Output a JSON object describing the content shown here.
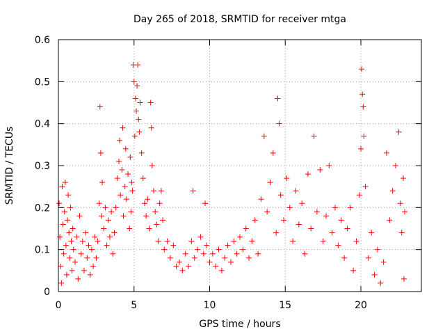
{
  "chart_data": {
    "type": "scatter",
    "title": "Day 265 of 2018, SRMTID for receiver mtga",
    "xlabel": "GPS time / hours",
    "ylabel": "SRMTID / TECUs",
    "xlim": [
      0,
      24
    ],
    "ylim": [
      0,
      0.6
    ],
    "xticks": [
      "0",
      "5",
      "10",
      "15",
      "20"
    ],
    "yticks": [
      "0",
      "0.1",
      "0.2",
      "0.3",
      "0.4",
      "0.5",
      "0.6"
    ],
    "grid": true,
    "marker": "+",
    "series": [
      {
        "name": "SRMTID",
        "color": "#ff0000",
        "points": [
          [
            0.05,
            0.21
          ],
          [
            0.1,
            0.13
          ],
          [
            0.15,
            0.06
          ],
          [
            0.2,
            0.02
          ],
          [
            0.25,
            0.25
          ],
          [
            0.3,
            0.16
          ],
          [
            0.35,
            0.09
          ],
          [
            0.4,
            0.19
          ],
          [
            0.45,
            0.26
          ],
          [
            0.5,
            0.11
          ],
          [
            0.55,
            0.04
          ],
          [
            0.6,
            0.17
          ],
          [
            0.65,
            0.23
          ],
          [
            0.7,
            0.14
          ],
          [
            0.75,
            0.08
          ],
          [
            0.8,
            0.2
          ],
          [
            0.85,
            0.12
          ],
          [
            0.9,
            0.05
          ],
          [
            0.95,
            0.15
          ],
          [
            1.0,
            0.1
          ],
          [
            1.1,
            0.07
          ],
          [
            1.2,
            0.13
          ],
          [
            1.3,
            0.03
          ],
          [
            1.4,
            0.18
          ],
          [
            1.5,
            0.09
          ],
          [
            1.6,
            0.12
          ],
          [
            1.7,
            0.05
          ],
          [
            1.8,
            0.14
          ],
          [
            1.9,
            0.08
          ],
          [
            2.0,
            0.11
          ],
          [
            2.1,
            0.04
          ],
          [
            2.2,
            0.1
          ],
          [
            2.3,
            0.06
          ],
          [
            2.4,
            0.13
          ],
          [
            2.5,
            0.08
          ],
          [
            2.6,
            0.12
          ],
          [
            2.7,
            0.21
          ],
          [
            2.75,
            0.44
          ],
          [
            2.8,
            0.33
          ],
          [
            2.85,
            0.18
          ],
          [
            2.9,
            0.26
          ],
          [
            3.0,
            0.15
          ],
          [
            3.1,
            0.2
          ],
          [
            3.2,
            0.11
          ],
          [
            3.3,
            0.17
          ],
          [
            3.4,
            0.13
          ],
          [
            3.5,
            0.19
          ],
          [
            3.6,
            0.09
          ],
          [
            3.7,
            0.14
          ],
          [
            3.8,
            0.2
          ],
          [
            3.9,
            0.27
          ],
          [
            4.0,
            0.31
          ],
          [
            4.05,
            0.36
          ],
          [
            4.1,
            0.23
          ],
          [
            4.2,
            0.29
          ],
          [
            4.25,
            0.39
          ],
          [
            4.3,
            0.18
          ],
          [
            4.4,
            0.25
          ],
          [
            4.45,
            0.34
          ],
          [
            4.5,
            0.22
          ],
          [
            4.6,
            0.28
          ],
          [
            4.7,
            0.15
          ],
          [
            4.75,
            0.32
          ],
          [
            4.8,
            0.19
          ],
          [
            4.85,
            0.26
          ],
          [
            4.9,
            0.24
          ],
          [
            4.95,
            0.54
          ],
          [
            5.0,
            0.5
          ],
          [
            5.05,
            0.37
          ],
          [
            5.1,
            0.46
          ],
          [
            5.15,
            0.43
          ],
          [
            5.2,
            0.49
          ],
          [
            5.25,
            0.54
          ],
          [
            5.3,
            0.41
          ],
          [
            5.35,
            0.38
          ],
          [
            5.4,
            0.45
          ],
          [
            5.5,
            0.33
          ],
          [
            5.6,
            0.27
          ],
          [
            5.7,
            0.21
          ],
          [
            5.8,
            0.18
          ],
          [
            5.9,
            0.22
          ],
          [
            6.0,
            0.15
          ],
          [
            6.1,
            0.45
          ],
          [
            6.15,
            0.39
          ],
          [
            6.2,
            0.3
          ],
          [
            6.3,
            0.24
          ],
          [
            6.4,
            0.19
          ],
          [
            6.5,
            0.16
          ],
          [
            6.6,
            0.12
          ],
          [
            6.7,
            0.21
          ],
          [
            6.8,
            0.24
          ],
          [
            6.9,
            0.17
          ],
          [
            7.0,
            0.1
          ],
          [
            7.2,
            0.12
          ],
          [
            7.4,
            0.08
          ],
          [
            7.6,
            0.11
          ],
          [
            7.8,
            0.06
          ],
          [
            8.0,
            0.07
          ],
          [
            8.2,
            0.05
          ],
          [
            8.4,
            0.09
          ],
          [
            8.6,
            0.06
          ],
          [
            8.8,
            0.12
          ],
          [
            8.9,
            0.24
          ],
          [
            9.0,
            0.08
          ],
          [
            9.2,
            0.1
          ],
          [
            9.4,
            0.13
          ],
          [
            9.6,
            0.09
          ],
          [
            9.7,
            0.21
          ],
          [
            9.8,
            0.11
          ],
          [
            10.0,
            0.07
          ],
          [
            10.2,
            0.09
          ],
          [
            10.4,
            0.06
          ],
          [
            10.6,
            0.1
          ],
          [
            10.8,
            0.05
          ],
          [
            11.0,
            0.08
          ],
          [
            11.2,
            0.11
          ],
          [
            11.4,
            0.07
          ],
          [
            11.6,
            0.12
          ],
          [
            11.8,
            0.09
          ],
          [
            12.0,
            0.13
          ],
          [
            12.2,
            0.1
          ],
          [
            12.4,
            0.15
          ],
          [
            12.6,
            0.08
          ],
          [
            12.8,
            0.12
          ],
          [
            13.0,
            0.17
          ],
          [
            13.2,
            0.09
          ],
          [
            13.4,
            0.22
          ],
          [
            13.6,
            0.37
          ],
          [
            13.8,
            0.19
          ],
          [
            14.0,
            0.26
          ],
          [
            14.2,
            0.33
          ],
          [
            14.4,
            0.14
          ],
          [
            14.5,
            0.46
          ],
          [
            14.6,
            0.4
          ],
          [
            14.7,
            0.23
          ],
          [
            14.9,
            0.17
          ],
          [
            15.1,
            0.27
          ],
          [
            15.3,
            0.2
          ],
          [
            15.5,
            0.12
          ],
          [
            15.7,
            0.24
          ],
          [
            15.9,
            0.16
          ],
          [
            16.1,
            0.21
          ],
          [
            16.3,
            0.09
          ],
          [
            16.5,
            0.28
          ],
          [
            16.7,
            0.15
          ],
          [
            16.9,
            0.37
          ],
          [
            17.1,
            0.19
          ],
          [
            17.3,
            0.29
          ],
          [
            17.5,
            0.12
          ],
          [
            17.7,
            0.18
          ],
          [
            17.9,
            0.3
          ],
          [
            18.1,
            0.14
          ],
          [
            18.3,
            0.2
          ],
          [
            18.5,
            0.11
          ],
          [
            18.7,
            0.17
          ],
          [
            18.9,
            0.08
          ],
          [
            19.1,
            0.15
          ],
          [
            19.3,
            0.2
          ],
          [
            19.5,
            0.05
          ],
          [
            19.7,
            0.12
          ],
          [
            19.9,
            0.23
          ],
          [
            20.0,
            0.34
          ],
          [
            20.05,
            0.53
          ],
          [
            20.1,
            0.47
          ],
          [
            20.15,
            0.44
          ],
          [
            20.2,
            0.37
          ],
          [
            20.3,
            0.25
          ],
          [
            20.5,
            0.08
          ],
          [
            20.7,
            0.14
          ],
          [
            20.9,
            0.04
          ],
          [
            21.1,
            0.1
          ],
          [
            21.3,
            0.02
          ],
          [
            21.5,
            0.07
          ],
          [
            21.7,
            0.33
          ],
          [
            21.9,
            0.17
          ],
          [
            22.1,
            0.24
          ],
          [
            22.3,
            0.3
          ],
          [
            22.5,
            0.38
          ],
          [
            22.6,
            0.21
          ],
          [
            22.7,
            0.14
          ],
          [
            22.8,
            0.27
          ],
          [
            22.85,
            0.03
          ],
          [
            22.9,
            0.19
          ]
        ]
      }
    ]
  }
}
